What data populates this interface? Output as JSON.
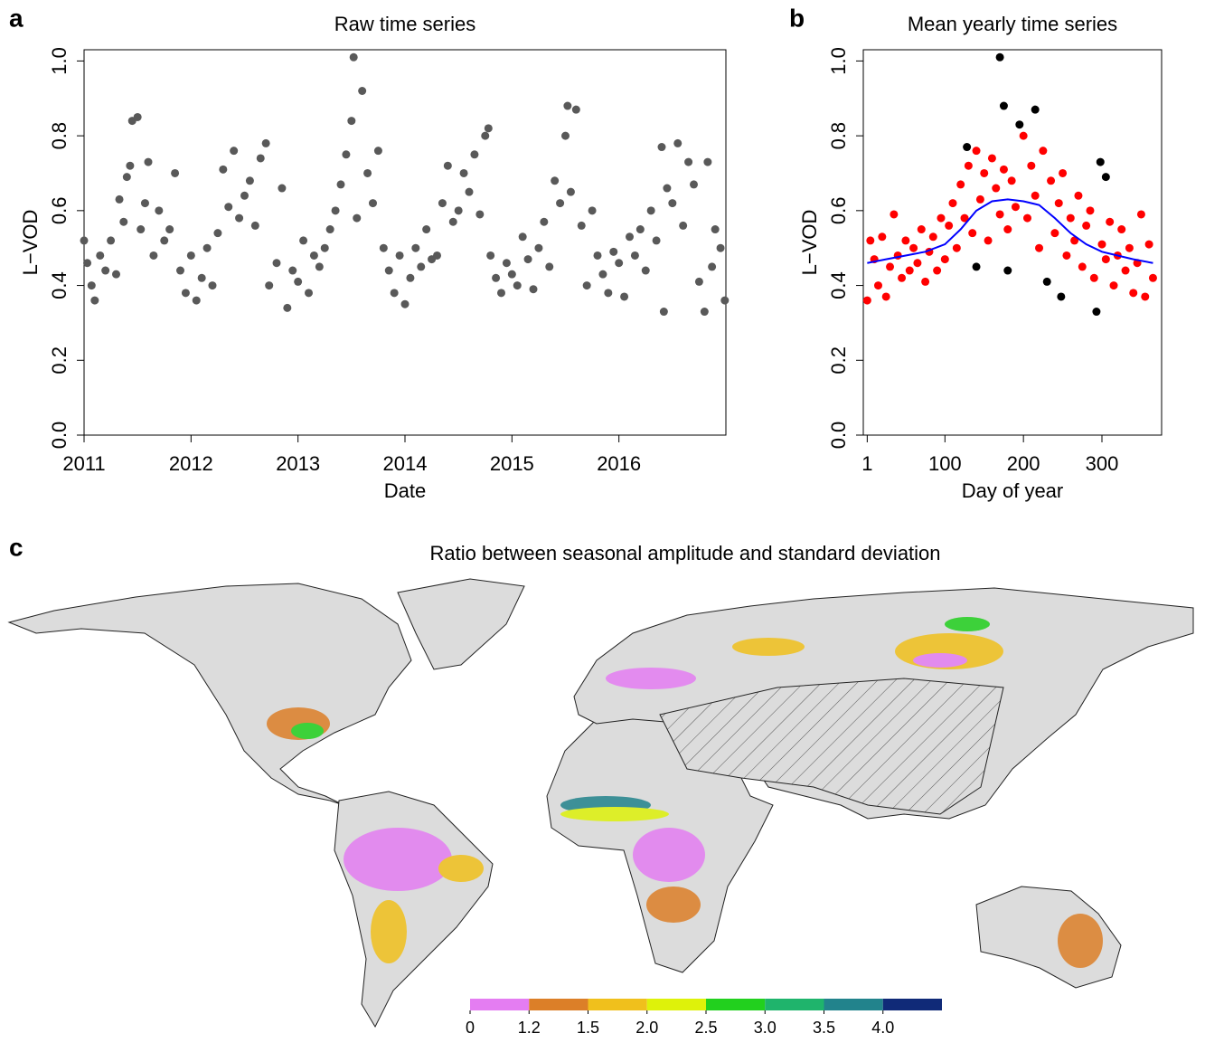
{
  "chart_data": [
    {
      "type": "scatter",
      "panel": "a",
      "title": "Raw time series",
      "xlabel": "Date",
      "ylabel": "L−VOD",
      "xlim": [
        2011,
        2017
      ],
      "ylim": [
        0,
        1.03
      ],
      "xticks": [
        2011,
        2012,
        2013,
        2014,
        2015,
        2016
      ],
      "yticks": [
        {
          "value": 0,
          "label": "0.0"
        },
        0.2,
        0.4,
        0.6,
        0.8,
        {
          "value": 1,
          "label": "1.0"
        }
      ],
      "series": [
        {
          "color": "#595959",
          "kind": "points",
          "x": [
            2011.0,
            2011.03,
            2011.07,
            2011.1,
            2011.15,
            2011.2,
            2011.25,
            2011.3,
            2011.33,
            2011.37,
            2011.4,
            2011.43,
            2011.45,
            2011.5,
            2011.53,
            2011.57,
            2011.6,
            2011.65,
            2011.7,
            2011.75,
            2011.8,
            2011.85,
            2011.9,
            2011.95,
            2012.0,
            2012.05,
            2012.1,
            2012.15,
            2012.2,
            2012.25,
            2012.3,
            2012.35,
            2012.4,
            2012.45,
            2012.5,
            2012.55,
            2012.6,
            2012.65,
            2012.7,
            2012.73,
            2012.8,
            2012.85,
            2012.9,
            2012.95,
            2013.0,
            2013.05,
            2013.1,
            2013.15,
            2013.2,
            2013.25,
            2013.3,
            2013.35,
            2013.4,
            2013.45,
            2013.5,
            2013.52,
            2013.55,
            2013.6,
            2013.65,
            2013.7,
            2013.75,
            2013.8,
            2013.85,
            2013.9,
            2013.95,
            2014.0,
            2014.05,
            2014.1,
            2014.15,
            2014.2,
            2014.25,
            2014.3,
            2014.35,
            2014.4,
            2014.45,
            2014.5,
            2014.55,
            2014.6,
            2014.65,
            2014.7,
            2014.75,
            2014.78,
            2014.8,
            2014.85,
            2014.9,
            2014.95,
            2015.0,
            2015.05,
            2015.1,
            2015.15,
            2015.2,
            2015.25,
            2015.3,
            2015.35,
            2015.4,
            2015.45,
            2015.5,
            2015.52,
            2015.55,
            2015.6,
            2015.65,
            2015.7,
            2015.75,
            2015.8,
            2015.85,
            2015.9,
            2015.95,
            2016.0,
            2016.05,
            2016.1,
            2016.15,
            2016.2,
            2016.25,
            2016.3,
            2016.35,
            2016.4,
            2016.42,
            2016.45,
            2016.5,
            2016.55,
            2016.6,
            2016.65,
            2016.7,
            2016.75,
            2016.8,
            2016.83,
            2016.87,
            2016.9,
            2016.95,
            2016.99
          ],
          "values": [
            0.52,
            0.46,
            0.4,
            0.36,
            0.48,
            0.44,
            0.52,
            0.43,
            0.63,
            0.57,
            0.69,
            0.72,
            0.84,
            0.85,
            0.55,
            0.62,
            0.73,
            0.48,
            0.6,
            0.52,
            0.55,
            0.7,
            0.44,
            0.38,
            0.48,
            0.36,
            0.42,
            0.5,
            0.4,
            0.54,
            0.71,
            0.61,
            0.76,
            0.58,
            0.64,
            0.68,
            0.56,
            0.74,
            0.78,
            0.4,
            0.46,
            0.66,
            0.34,
            0.44,
            0.41,
            0.52,
            0.38,
            0.48,
            0.45,
            0.5,
            0.55,
            0.6,
            0.67,
            0.75,
            0.84,
            1.01,
            0.58,
            0.92,
            0.7,
            0.62,
            0.76,
            0.5,
            0.44,
            0.38,
            0.48,
            0.35,
            0.42,
            0.5,
            0.45,
            0.55,
            0.47,
            0.48,
            0.62,
            0.72,
            0.57,
            0.6,
            0.7,
            0.65,
            0.75,
            0.59,
            0.8,
            0.82,
            0.48,
            0.42,
            0.38,
            0.46,
            0.43,
            0.4,
            0.53,
            0.47,
            0.39,
            0.5,
            0.57,
            0.45,
            0.68,
            0.62,
            0.8,
            0.88,
            0.65,
            0.87,
            0.56,
            0.4,
            0.6,
            0.48,
            0.43,
            0.38,
            0.49,
            0.46,
            0.37,
            0.53,
            0.48,
            0.55,
            0.44,
            0.6,
            0.52,
            0.77,
            0.33,
            0.66,
            0.62,
            0.78,
            0.56,
            0.73,
            0.67,
            0.41,
            0.33,
            0.73,
            0.45,
            0.55,
            0.5,
            0.36
          ]
        }
      ]
    },
    {
      "type": "scatter",
      "panel": "b",
      "title": "Mean yearly time series",
      "xlabel": "Day of year",
      "ylabel": "L−VOD",
      "xlim": [
        -4,
        376
      ],
      "ylim": [
        0,
        1.03
      ],
      "xticks": [
        1,
        100,
        200,
        300
      ],
      "yticks": [
        {
          "value": 0,
          "label": "0.0"
        },
        0.2,
        0.4,
        0.6,
        0.8,
        {
          "value": 1,
          "label": "1.0"
        }
      ],
      "series": [
        {
          "color": "#ff0000",
          "kind": "points",
          "x": [
            1,
            5,
            10,
            15,
            20,
            25,
            30,
            35,
            40,
            45,
            50,
            55,
            60,
            65,
            70,
            75,
            80,
            85,
            90,
            95,
            100,
            105,
            110,
            115,
            120,
            125,
            130,
            135,
            140,
            145,
            150,
            155,
            160,
            165,
            170,
            175,
            180,
            185,
            190,
            200,
            205,
            210,
            215,
            220,
            225,
            235,
            240,
            245,
            250,
            255,
            260,
            265,
            270,
            275,
            280,
            285,
            290,
            300,
            305,
            310,
            315,
            320,
            325,
            330,
            335,
            340,
            345,
            350,
            355,
            360,
            365
          ],
          "values": [
            0.36,
            0.52,
            0.47,
            0.4,
            0.53,
            0.37,
            0.45,
            0.59,
            0.48,
            0.42,
            0.52,
            0.44,
            0.5,
            0.46,
            0.55,
            0.41,
            0.49,
            0.53,
            0.44,
            0.58,
            0.47,
            0.56,
            0.62,
            0.5,
            0.67,
            0.58,
            0.72,
            0.54,
            0.76,
            0.63,
            0.7,
            0.52,
            0.74,
            0.66,
            0.59,
            0.71,
            0.55,
            0.68,
            0.61,
            0.8,
            0.58,
            0.72,
            0.64,
            0.5,
            0.76,
            0.68,
            0.54,
            0.62,
            0.7,
            0.48,
            0.58,
            0.52,
            0.64,
            0.45,
            0.56,
            0.6,
            0.42,
            0.51,
            0.47,
            0.57,
            0.4,
            0.48,
            0.55,
            0.44,
            0.5,
            0.38,
            0.46,
            0.59,
            0.37,
            0.51,
            0.42
          ]
        },
        {
          "color": "#000000",
          "kind": "points",
          "x": [
            128,
            140,
            170,
            175,
            180,
            195,
            215,
            230,
            248,
            293,
            298,
            305
          ],
          "values": [
            0.77,
            0.45,
            1.01,
            0.88,
            0.44,
            0.83,
            0.87,
            0.41,
            0.37,
            0.33,
            0.73,
            0.69
          ]
        },
        {
          "color": "#0000ff",
          "kind": "line",
          "x": [
            1,
            25,
            50,
            75,
            100,
            120,
            140,
            160,
            180,
            200,
            220,
            240,
            260,
            280,
            300,
            320,
            340,
            365
          ],
          "values": [
            0.46,
            0.47,
            0.48,
            0.49,
            0.51,
            0.55,
            0.6,
            0.625,
            0.63,
            0.625,
            0.615,
            0.58,
            0.54,
            0.51,
            0.49,
            0.48,
            0.47,
            0.46
          ]
        }
      ]
    },
    {
      "type": "map",
      "panel": "c",
      "title": "Ratio between seasonal amplitude and standard deviation",
      "colorbar": {
        "colors": [
          "#e47df2",
          "#dc7f28",
          "#f0c01c",
          "#def20a",
          "#22d01e",
          "#1fb46c",
          "#22838c",
          "#102a78"
        ],
        "ticks": [
          0,
          1.2,
          1.5,
          {
            "value": 2,
            "label": "2.0"
          },
          2.5,
          {
            "value": 3,
            "label": "3.0"
          },
          3.5,
          {
            "value": 4,
            "label": "4.0"
          }
        ]
      }
    }
  ]
}
